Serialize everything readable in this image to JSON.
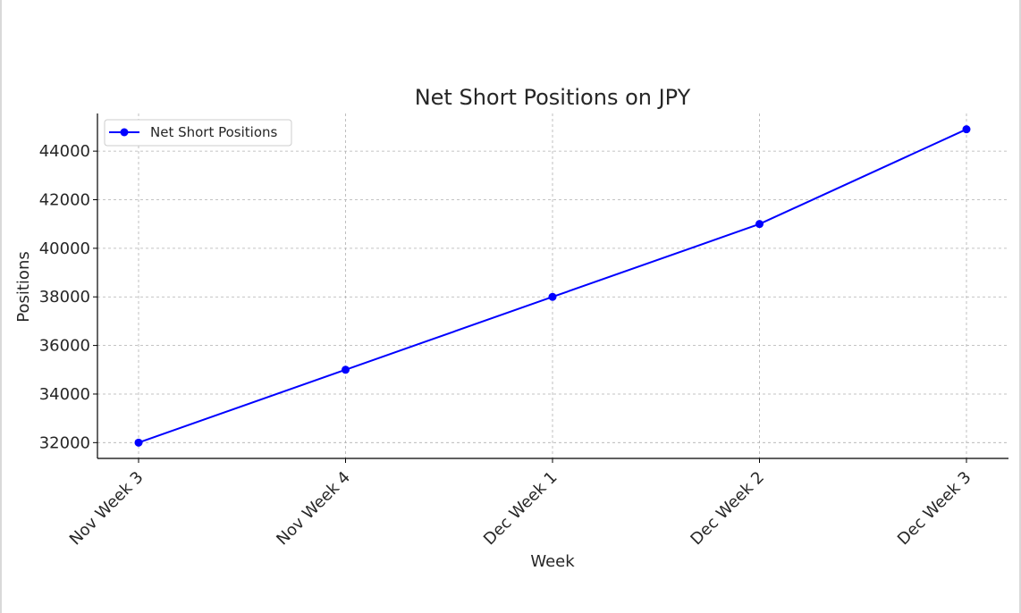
{
  "chart_data": {
    "type": "line",
    "title": "Net Short Positions on JPY",
    "xlabel": "Week",
    "ylabel": "Positions",
    "categories": [
      "Nov Week 3",
      "Nov Week 4",
      "Dec Week 1",
      "Dec Week 2",
      "Dec Week 3"
    ],
    "series": [
      {
        "name": "Net Short Positions",
        "values": [
          32000,
          35000,
          38000,
          41000,
          44900
        ],
        "color": "#0000ff",
        "marker": "circle"
      }
    ],
    "yticks": [
      32000,
      34000,
      36000,
      38000,
      40000,
      42000,
      44000
    ],
    "ylim": [
      31350,
      45550
    ],
    "grid": true,
    "legend_position": "top-left"
  }
}
